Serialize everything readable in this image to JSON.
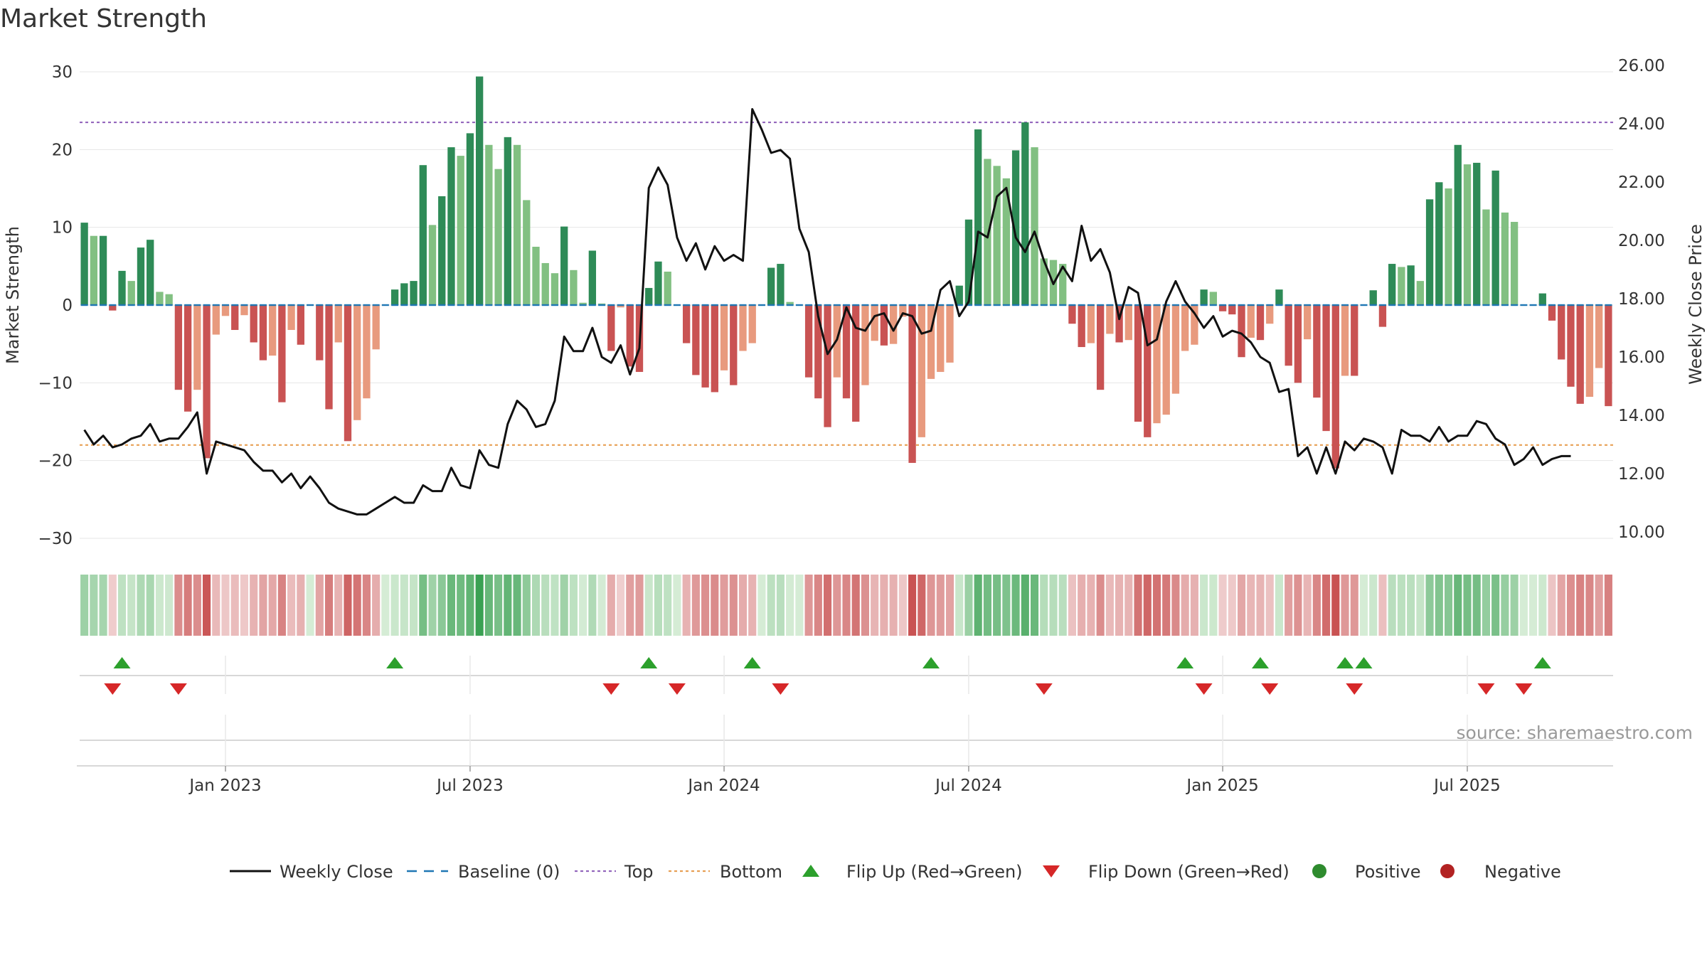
{
  "chart_data": {
    "type": "bar",
    "title": "Market Strength",
    "source": "source: sharemaestro.com",
    "y_left": {
      "label": "Market Strength",
      "range": [
        -33,
        33
      ],
      "ticks": [
        30,
        20,
        10,
        0,
        -10,
        -20,
        -30
      ],
      "tick_labels": [
        "30",
        "20",
        "10",
        "0",
        "−10",
        "−20",
        "−30"
      ]
    },
    "y_right": {
      "label": "Weekly Close Price",
      "range": [
        9.5,
        26.2
      ],
      "ticks": [
        26,
        24,
        22,
        20,
        18,
        16,
        14,
        12,
        10
      ],
      "tick_labels": [
        "26.00",
        "24.00",
        "22.00",
        "20.00",
        "18.00",
        "16.00",
        "14.00",
        "12.00",
        "10.00"
      ]
    },
    "x_axis": {
      "ticks": [
        {
          "week": 15,
          "label": "Jan 2023"
        },
        {
          "week": 41,
          "label": "Jul 2023"
        },
        {
          "week": 68,
          "label": "Jan 2024"
        },
        {
          "week": 94,
          "label": "Jul 2024"
        },
        {
          "week": 121,
          "label": "Jan 2025"
        },
        {
          "week": 147,
          "label": "Jul 2025"
        }
      ]
    },
    "reference_lines": {
      "baseline": 0,
      "top": 23.5,
      "bottom": -18
    },
    "strength": [
      10.6,
      8.9,
      8.9,
      -0.7,
      4.4,
      3.1,
      7.4,
      8.4,
      1.7,
      1.4,
      -10.9,
      -13.7,
      -10.9,
      -19.7,
      -3.8,
      -1.4,
      -3.2,
      -1.3,
      -4.8,
      -7.1,
      -6.5,
      -12.5,
      -3.2,
      -5.1,
      0,
      -7.1,
      -13.4,
      -4.8,
      -17.5,
      -14.8,
      -12.0,
      -5.7,
      0,
      2.0,
      2.8,
      3.1,
      18.0,
      10.3,
      14.0,
      20.3,
      19.2,
      22.1,
      29.4,
      20.6,
      17.5,
      21.6,
      20.6,
      13.5,
      7.5,
      5.4,
      4.1,
      10.1,
      4.5,
      0.3,
      7.0,
      0.2,
      -5.9,
      -0.3,
      -7.9,
      -8.6,
      2.2,
      5.6,
      4.3,
      0,
      -4.9,
      -9.0,
      -10.6,
      -11.2,
      -8.4,
      -10.3,
      -5.9,
      -4.9,
      0,
      4.8,
      5.3,
      0.4,
      0,
      -9.3,
      -12.0,
      -15.7,
      -9.3,
      -12.0,
      -15.0,
      -10.3,
      -4.6,
      -5.2,
      -5.0,
      -1.5,
      -20.3,
      -17.0,
      -9.5,
      -8.6,
      -7.4,
      2.5,
      11.0,
      22.6,
      18.8,
      17.9,
      16.3,
      19.9,
      23.5,
      20.3,
      6.0,
      5.8,
      5.3,
      -2.4,
      -5.4,
      -4.9,
      -10.9,
      -3.7,
      -4.8,
      -4.5,
      -15.0,
      -17.0,
      -15.2,
      -14.1,
      -11.4,
      -5.9,
      -5.1,
      2.0,
      1.7,
      -0.8,
      -1.2,
      -6.7,
      -4.2,
      -4.5,
      -2.4,
      2.0,
      -7.8,
      -10.0,
      -4.4,
      -11.9,
      -16.2,
      -21.0,
      -9.1,
      -9.1,
      0,
      1.9,
      -2.8,
      5.3,
      4.9,
      5.1,
      3.1,
      13.6,
      15.8,
      15.0,
      20.6,
      18.1,
      18.3,
      12.3,
      17.3,
      11.9,
      10.7,
      0,
      0,
      1.5,
      -2.0,
      -7.0,
      -10.5,
      -12.7,
      -11.8,
      -8.1,
      -13.0
    ],
    "close": [
      13.5,
      13.0,
      13.3,
      12.9,
      13.0,
      13.2,
      13.3,
      13.7,
      13.1,
      13.2,
      13.2,
      13.6,
      14.1,
      12.0,
      13.1,
      13.0,
      12.9,
      12.8,
      12.4,
      12.1,
      12.1,
      11.7,
      12.0,
      11.5,
      11.9,
      11.5,
      11.0,
      10.8,
      10.7,
      10.6,
      10.6,
      10.8,
      11.0,
      11.2,
      11.0,
      11.0,
      11.6,
      11.4,
      11.4,
      12.2,
      11.6,
      11.5,
      12.8,
      12.3,
      12.2,
      13.7,
      14.5,
      14.2,
      13.6,
      13.7,
      14.5,
      16.7,
      16.2,
      16.2,
      17.0,
      16.0,
      15.8,
      16.4,
      15.4,
      16.3,
      21.8,
      22.5,
      21.9,
      20.1,
      19.3,
      19.9,
      19.0,
      19.8,
      19.3,
      19.5,
      19.3,
      24.5,
      23.8,
      23.0,
      23.1,
      22.8,
      20.4,
      19.6,
      17.4,
      16.1,
      16.6,
      17.7,
      17.0,
      16.9,
      17.4,
      17.5,
      16.9,
      17.5,
      17.4,
      16.8,
      16.9,
      18.3,
      18.6,
      17.4,
      17.9,
      20.3,
      20.1,
      21.5,
      21.8,
      20.1,
      19.6,
      20.3,
      19.3,
      18.5,
      19.1,
      18.6,
      20.5,
      19.3,
      19.7,
      18.9,
      17.3,
      18.4,
      18.2,
      16.4,
      16.6,
      17.9,
      18.6,
      17.9,
      17.5,
      17.0,
      17.4,
      16.7,
      16.9,
      16.8,
      16.5,
      16.0,
      15.8,
      14.8,
      14.9,
      12.6,
      12.9,
      12.0,
      12.9,
      12.0,
      13.1,
      12.8,
      13.2,
      13.1,
      12.9,
      12.0,
      13.5,
      13.3,
      13.3,
      13.1,
      13.6,
      13.1,
      13.3,
      13.3,
      13.8,
      13.7,
      13.2,
      13.0,
      12.3,
      12.5,
      12.9,
      12.3,
      12.5,
      12.6,
      12.6
    ],
    "flip_up_weeks": [
      4,
      33,
      60,
      71,
      90,
      117,
      125,
      134,
      136,
      155
    ],
    "flip_down_weeks": [
      3,
      10,
      56,
      63,
      74,
      102,
      119,
      126,
      135,
      149,
      153
    ],
    "legend": [
      {
        "key": "close",
        "label": "Weekly Close",
        "color": "#111111"
      },
      {
        "key": "baseline",
        "label": "Baseline (0)",
        "color": "#1f77b4"
      },
      {
        "key": "top",
        "label": "Top",
        "color": "#9467bd"
      },
      {
        "key": "bottom",
        "label": "Bottom",
        "color": "#e8a055"
      },
      {
        "key": "flip_up",
        "label": "Flip Up (Red→Green)",
        "color": "#2ca02c"
      },
      {
        "key": "flip_down",
        "label": "Flip Down (Green→Red)",
        "color": "#d62728"
      },
      {
        "key": "positive",
        "label": "Positive",
        "color": "#2e8b2e"
      },
      {
        "key": "negative",
        "label": "Negative",
        "color": "#b22222"
      }
    ],
    "colors": {
      "pos_strong": "#2e8b57",
      "pos_light": "#82c082",
      "neg_strong": "#c95353",
      "neg_light": "#e89a7e",
      "close_line": "#111111",
      "baseline": "#1f77b4",
      "top_line": "#9467bd",
      "bottom_line": "#e8a055",
      "flip_up": "#2ca02c",
      "flip_down": "#d62728",
      "grid": "#e6e6e6"
    }
  }
}
